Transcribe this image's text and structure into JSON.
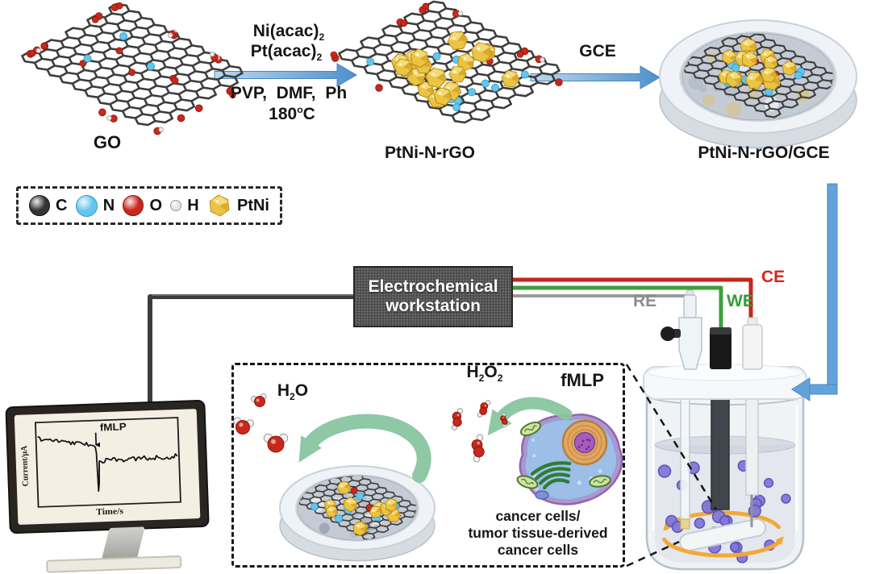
{
  "colors": {
    "arrow_blue": "#63a3da",
    "wire_red": "#c4261b",
    "wire_green": "#3fa03c",
    "wire_gray": "#9a9a9a",
    "wire_black": "#3c3c3c",
    "green_arrow": "#88c6a1",
    "atom_carbon": "#343434",
    "atom_nitrogen": "#63c6ee",
    "atom_oxygen": "#c8281c",
    "atom_hydrogen": "#e4e4e4",
    "ptni_gold": "#ecc443",
    "cell_dot_purple": "#8377d6",
    "stir_arrow_orange": "#f2a93a"
  },
  "synthesis": {
    "go_label": "GO",
    "reagent1_base": "Ni(acac)",
    "reagent1_sub": "2",
    "reagent2_base": "Pt(acac)",
    "reagent2_sub": "2",
    "conditions": "PVP,  DMF,  Ph",
    "temp_base": "180",
    "temp_sup": "o",
    "temp_unit": "C",
    "product_label": "PtNi-N-rGO",
    "gce_arrow_label": "GCE",
    "electrode_label": "PtNi-N-rGO/GCE"
  },
  "legend": {
    "items": [
      {
        "symbol": "C"
      },
      {
        "symbol": "N"
      },
      {
        "symbol": "O"
      },
      {
        "symbol": "H"
      },
      {
        "symbol": "PtNi"
      }
    ]
  },
  "workstation": {
    "line1": "Electrochemical",
    "line2": "workstation"
  },
  "wires": {
    "ce_label": "CE",
    "we_label": "WE",
    "re_label": "RE"
  },
  "monitor": {
    "ylabel": "Current/μA",
    "xlabel": "Time/s",
    "annotation": "fMLP"
  },
  "reaction_box": {
    "h2o_base1": "H",
    "h2o_sub1": "2",
    "h2o_base2": "O",
    "h2o2_base1": "H",
    "h2o2_sub1": "2",
    "h2o2_base2": "O",
    "h2o2_sub2": "2",
    "fmlp_label": "fMLP",
    "cells_line1": "cancer cells/",
    "cells_line2": "tumor tissue-derived",
    "cells_line3": "cancer cells"
  }
}
